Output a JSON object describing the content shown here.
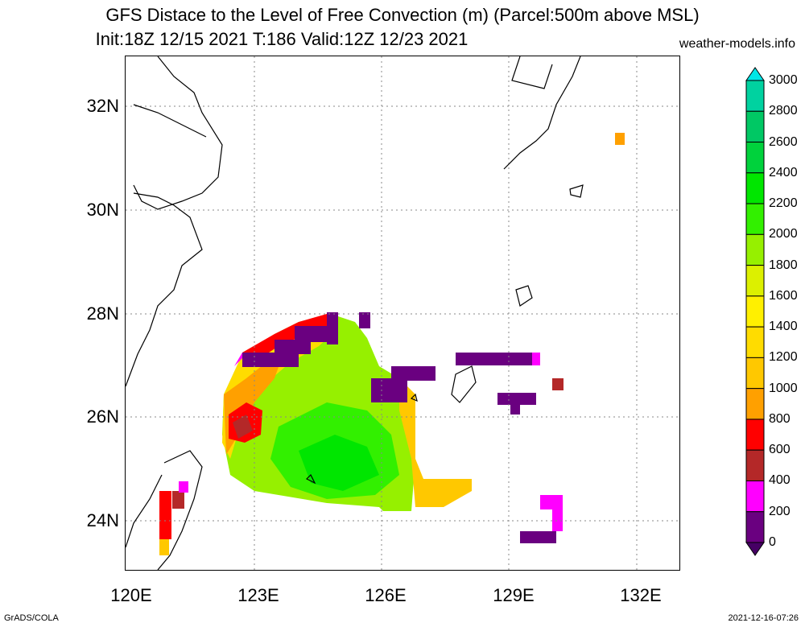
{
  "title": {
    "line1": "GFS Distace to the Level of Free Convection (m) (Parcel:500m above MSL)",
    "line2": "Init:18Z 12/15 2021 T:186 Valid:12Z 12/23 2021",
    "site": "weather-models.info"
  },
  "axes": {
    "x_ticks": [
      "120E",
      "123E",
      "126E",
      "129E",
      "132E"
    ],
    "y_ticks": [
      "32N",
      "30N",
      "28N",
      "26N",
      "24N"
    ]
  },
  "colorbar": {
    "labels": [
      "3000",
      "2800",
      "2600",
      "2400",
      "2200",
      "2000",
      "1800",
      "1600",
      "1400",
      "1200",
      "1000",
      "800",
      "600",
      "400",
      "200",
      "0"
    ],
    "colors": [
      "#00e6e6",
      "#00d2a0",
      "#00c864",
      "#00d23c",
      "#00e600",
      "#32f000",
      "#96f000",
      "#dcf000",
      "#fff000",
      "#ffdc00",
      "#ffc800",
      "#ffa000",
      "#ff0000",
      "#b42828",
      "#ff00ff",
      "#6a0080",
      "#460064"
    ]
  },
  "footer": {
    "left": "GrADS/COLA",
    "right": "2021-12-16-07:26"
  }
}
